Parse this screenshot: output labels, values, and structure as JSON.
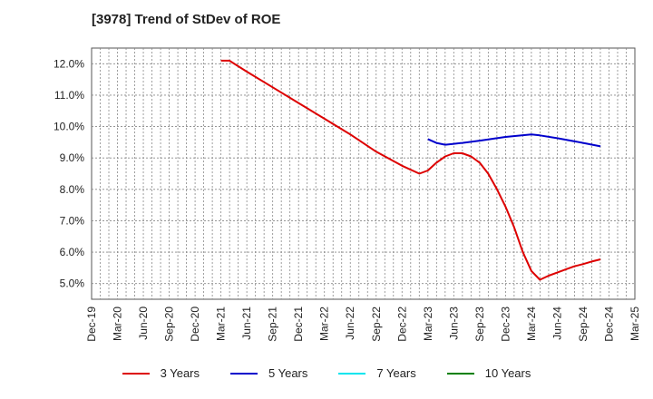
{
  "chart_data": {
    "type": "line",
    "title": "[3978]  Trend of StDev of ROE",
    "xlabel": "",
    "ylabel": "",
    "x_ticks": [
      "Dec-19",
      "Mar-20",
      "Jun-20",
      "Sep-20",
      "Dec-20",
      "Mar-21",
      "Jun-21",
      "Sep-21",
      "Dec-21",
      "Mar-22",
      "Jun-22",
      "Sep-22",
      "Dec-22",
      "Mar-23",
      "Jun-23",
      "Sep-23",
      "Dec-23",
      "Mar-24",
      "Jun-24",
      "Sep-24",
      "Dec-24",
      "Mar-25"
    ],
    "y_ticks": [
      "5.0%",
      "6.0%",
      "7.0%",
      "8.0%",
      "9.0%",
      "10.0%",
      "11.0%",
      "12.0%"
    ],
    "ylim": [
      4.5,
      12.5
    ],
    "grid": true,
    "legend_position": "bottom",
    "series": [
      {
        "name": "3 Years",
        "color": "#dd0000",
        "points": [
          [
            5.0,
            12.1
          ],
          [
            5.33,
            12.1
          ],
          [
            6.0,
            11.75
          ],
          [
            7.0,
            11.25
          ],
          [
            8.0,
            10.75
          ],
          [
            9.0,
            10.25
          ],
          [
            10.0,
            9.75
          ],
          [
            11.0,
            9.2
          ],
          [
            12.0,
            8.75
          ],
          [
            12.67,
            8.5
          ],
          [
            13.0,
            8.6
          ],
          [
            13.33,
            8.85
          ],
          [
            13.67,
            9.05
          ],
          [
            14.0,
            9.15
          ],
          [
            14.33,
            9.15
          ],
          [
            14.67,
            9.05
          ],
          [
            15.0,
            8.85
          ],
          [
            15.33,
            8.5
          ],
          [
            15.67,
            8.0
          ],
          [
            16.0,
            7.45
          ],
          [
            16.33,
            6.8
          ],
          [
            16.67,
            6.0
          ],
          [
            17.0,
            5.4
          ],
          [
            17.33,
            5.12
          ],
          [
            17.67,
            5.25
          ],
          [
            18.0,
            5.35
          ],
          [
            18.33,
            5.45
          ],
          [
            18.67,
            5.55
          ],
          [
            19.0,
            5.62
          ],
          [
            19.33,
            5.7
          ],
          [
            19.67,
            5.77
          ]
        ]
      },
      {
        "name": "5 Years",
        "color": "#0000cc",
        "points": [
          [
            13.0,
            9.6
          ],
          [
            13.33,
            9.48
          ],
          [
            13.67,
            9.42
          ],
          [
            14.0,
            9.45
          ],
          [
            14.33,
            9.48
          ],
          [
            15.0,
            9.55
          ],
          [
            16.0,
            9.67
          ],
          [
            17.0,
            9.75
          ],
          [
            17.33,
            9.72
          ],
          [
            18.0,
            9.63
          ],
          [
            19.0,
            9.48
          ],
          [
            19.67,
            9.37
          ]
        ]
      },
      {
        "name": "7 Years",
        "color": "#00e5ee",
        "points": []
      },
      {
        "name": "10 Years",
        "color": "#008000",
        "points": []
      }
    ]
  }
}
